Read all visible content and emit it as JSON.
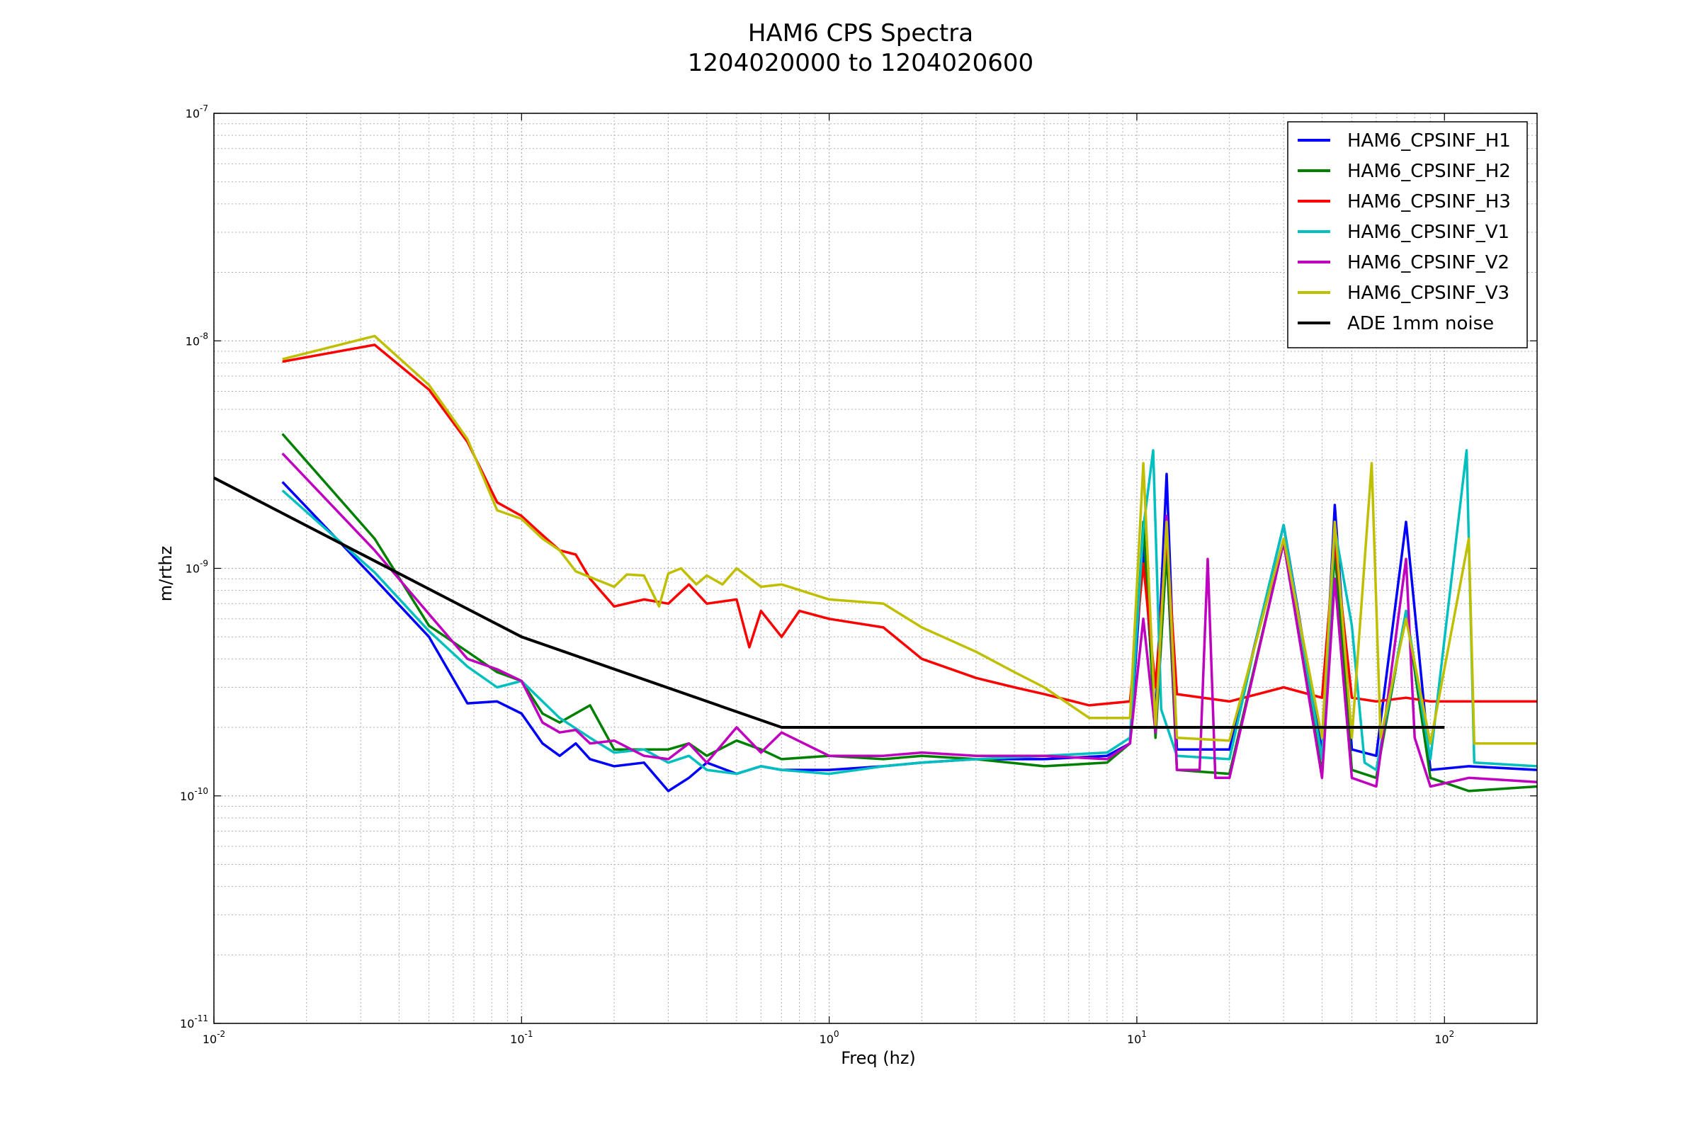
{
  "chart_data": {
    "type": "line",
    "title_line1": "HAM6 CPS Spectra",
    "title_line2": "1204020000 to 1204020600",
    "xlabel": "Freq (hz)",
    "ylabel": "m/rthz",
    "x_scale": "log",
    "y_scale": "log",
    "xlim": [
      0.01,
      200
    ],
    "ylim": [
      1e-11,
      1e-07
    ],
    "grid": true,
    "legend_position": "top-right",
    "x_ticks": [
      {
        "value": 0.01,
        "base": "10",
        "exp": "-2"
      },
      {
        "value": 0.1,
        "base": "10",
        "exp": "-1"
      },
      {
        "value": 1,
        "base": "10",
        "exp": "0"
      },
      {
        "value": 10,
        "base": "10",
        "exp": "1"
      },
      {
        "value": 100,
        "base": "10",
        "exp": "2"
      }
    ],
    "y_ticks": [
      {
        "value": 1e-11,
        "base": "10",
        "exp": "-11"
      },
      {
        "value": 1e-10,
        "base": "10",
        "exp": "-10"
      },
      {
        "value": 1e-09,
        "base": "10",
        "exp": "-9"
      },
      {
        "value": 1e-08,
        "base": "10",
        "exp": "-8"
      },
      {
        "value": 1e-07,
        "base": "10",
        "exp": "-7"
      }
    ],
    "series": [
      {
        "name": "HAM6_CPSINF_H1",
        "color": "#0000ff",
        "points": [
          [
            0.0167,
            2.4e-09
          ],
          [
            0.0333,
            9e-10
          ],
          [
            0.05,
            5e-10
          ],
          [
            0.0667,
            2.55e-10
          ],
          [
            0.0833,
            2.6e-10
          ],
          [
            0.1,
            2.3e-10
          ],
          [
            0.117,
            1.7e-10
          ],
          [
            0.133,
            1.5e-10
          ],
          [
            0.15,
            1.7e-10
          ],
          [
            0.167,
            1.45e-10
          ],
          [
            0.2,
            1.35e-10
          ],
          [
            0.25,
            1.4e-10
          ],
          [
            0.3,
            1.05e-10
          ],
          [
            0.35,
            1.2e-10
          ],
          [
            0.4,
            1.4e-10
          ],
          [
            0.5,
            1.25e-10
          ],
          [
            0.6,
            1.35e-10
          ],
          [
            0.7,
            1.3e-10
          ],
          [
            1.0,
            1.3e-10
          ],
          [
            1.5,
            1.35e-10
          ],
          [
            2.0,
            1.4e-10
          ],
          [
            3.0,
            1.45e-10
          ],
          [
            5.0,
            1.45e-10
          ],
          [
            8.0,
            1.5e-10
          ],
          [
            9.5,
            1.7e-10
          ],
          [
            10.5,
            1.25e-09
          ],
          [
            11.5,
            2.2e-10
          ],
          [
            12.5,
            2.6e-09
          ],
          [
            13.5,
            1.6e-10
          ],
          [
            20,
            1.6e-10
          ],
          [
            30,
            1.55e-09
          ],
          [
            40,
            1.55e-10
          ],
          [
            44,
            1.9e-09
          ],
          [
            50,
            1.6e-10
          ],
          [
            60,
            1.5e-10
          ],
          [
            75,
            1.6e-09
          ],
          [
            90,
            1.3e-10
          ],
          [
            120,
            1.35e-10
          ],
          [
            200,
            1.3e-10
          ]
        ]
      },
      {
        "name": "HAM6_CPSINF_H2",
        "color": "#008000",
        "points": [
          [
            0.0167,
            3.9e-09
          ],
          [
            0.0333,
            1.35e-09
          ],
          [
            0.05,
            5.6e-10
          ],
          [
            0.0667,
            4.3e-10
          ],
          [
            0.0833,
            3.5e-10
          ],
          [
            0.1,
            3.2e-10
          ],
          [
            0.117,
            2.3e-10
          ],
          [
            0.133,
            2.1e-10
          ],
          [
            0.167,
            2.5e-10
          ],
          [
            0.2,
            1.6e-10
          ],
          [
            0.25,
            1.6e-10
          ],
          [
            0.3,
            1.6e-10
          ],
          [
            0.35,
            1.7e-10
          ],
          [
            0.4,
            1.5e-10
          ],
          [
            0.5,
            1.75e-10
          ],
          [
            0.6,
            1.6e-10
          ],
          [
            0.7,
            1.45e-10
          ],
          [
            1.0,
            1.5e-10
          ],
          [
            1.5,
            1.45e-10
          ],
          [
            2.0,
            1.5e-10
          ],
          [
            3.0,
            1.45e-10
          ],
          [
            5.0,
            1.35e-10
          ],
          [
            8.0,
            1.4e-10
          ],
          [
            9.5,
            1.7e-10
          ],
          [
            10.5,
            1.6e-09
          ],
          [
            11.5,
            1.8e-10
          ],
          [
            12.5,
            1.2e-09
          ],
          [
            13.5,
            1.3e-10
          ],
          [
            20,
            1.25e-10
          ],
          [
            30,
            1.3e-09
          ],
          [
            40,
            1.25e-10
          ],
          [
            44,
            1.2e-09
          ],
          [
            50,
            1.3e-10
          ],
          [
            60,
            1.2e-10
          ],
          [
            75,
            6.5e-10
          ],
          [
            90,
            1.2e-10
          ],
          [
            120,
            1.05e-10
          ],
          [
            200,
            1.1e-10
          ]
        ]
      },
      {
        "name": "HAM6_CPSINF_H3",
        "color": "#ff0000",
        "points": [
          [
            0.0167,
            8.1e-09
          ],
          [
            0.0333,
            9.6e-09
          ],
          [
            0.05,
            6.1e-09
          ],
          [
            0.0667,
            3.6e-09
          ],
          [
            0.0833,
            1.95e-09
          ],
          [
            0.1,
            1.7e-09
          ],
          [
            0.117,
            1.4e-09
          ],
          [
            0.133,
            1.2e-09
          ],
          [
            0.15,
            1.15e-09
          ],
          [
            0.167,
            9e-10
          ],
          [
            0.2,
            6.8e-10
          ],
          [
            0.25,
            7.3e-10
          ],
          [
            0.3,
            7e-10
          ],
          [
            0.35,
            8.5e-10
          ],
          [
            0.4,
            7e-10
          ],
          [
            0.5,
            7.3e-10
          ],
          [
            0.55,
            4.5e-10
          ],
          [
            0.6,
            6.5e-10
          ],
          [
            0.7,
            5e-10
          ],
          [
            0.8,
            6.5e-10
          ],
          [
            1.0,
            6e-10
          ],
          [
            1.5,
            5.5e-10
          ],
          [
            2.0,
            4e-10
          ],
          [
            3.0,
            3.3e-10
          ],
          [
            4.0,
            3e-10
          ],
          [
            5.0,
            2.8e-10
          ],
          [
            7.0,
            2.5e-10
          ],
          [
            9.5,
            2.6e-10
          ],
          [
            10.5,
            1.05e-09
          ],
          [
            11.5,
            3e-10
          ],
          [
            12.5,
            1.4e-09
          ],
          [
            13.5,
            2.8e-10
          ],
          [
            20,
            2.6e-10
          ],
          [
            30,
            3e-10
          ],
          [
            40,
            2.7e-10
          ],
          [
            44,
            1.3e-09
          ],
          [
            50,
            2.7e-10
          ],
          [
            60,
            2.6e-10
          ],
          [
            75,
            2.7e-10
          ],
          [
            90,
            2.6e-10
          ],
          [
            120,
            2.6e-10
          ],
          [
            200,
            2.6e-10
          ]
        ]
      },
      {
        "name": "HAM6_CPSINF_V1",
        "color": "#00bfbf",
        "points": [
          [
            0.0167,
            2.2e-09
          ],
          [
            0.0333,
            9.6e-10
          ],
          [
            0.05,
            5.3e-10
          ],
          [
            0.0667,
            3.7e-10
          ],
          [
            0.0833,
            3e-10
          ],
          [
            0.1,
            3.2e-10
          ],
          [
            0.117,
            2.6e-10
          ],
          [
            0.133,
            2.2e-10
          ],
          [
            0.167,
            1.8e-10
          ],
          [
            0.2,
            1.55e-10
          ],
          [
            0.25,
            1.6e-10
          ],
          [
            0.3,
            1.4e-10
          ],
          [
            0.35,
            1.5e-10
          ],
          [
            0.4,
            1.3e-10
          ],
          [
            0.5,
            1.25e-10
          ],
          [
            0.6,
            1.35e-10
          ],
          [
            0.7,
            1.3e-10
          ],
          [
            1.0,
            1.25e-10
          ],
          [
            1.5,
            1.35e-10
          ],
          [
            2.0,
            1.4e-10
          ],
          [
            3.0,
            1.45e-10
          ],
          [
            5.0,
            1.5e-10
          ],
          [
            8.0,
            1.55e-10
          ],
          [
            9.5,
            1.8e-10
          ],
          [
            10.5,
            1.5e-09
          ],
          [
            11.3,
            3.3e-09
          ],
          [
            12.0,
            2.4e-10
          ],
          [
            13.5,
            1.5e-10
          ],
          [
            20,
            1.45e-10
          ],
          [
            25,
            5.6e-10
          ],
          [
            30,
            1.55e-09
          ],
          [
            40,
            1.45e-10
          ],
          [
            44,
            1.5e-09
          ],
          [
            50,
            5.6e-10
          ],
          [
            55,
            1.4e-10
          ],
          [
            60,
            1.3e-10
          ],
          [
            75,
            6.5e-10
          ],
          [
            90,
            1.45e-10
          ],
          [
            118,
            3.3e-09
          ],
          [
            125,
            1.4e-10
          ],
          [
            200,
            1.35e-10
          ]
        ]
      },
      {
        "name": "HAM6_CPSINF_V2",
        "color": "#bf00bf",
        "points": [
          [
            0.0167,
            3.2e-09
          ],
          [
            0.0333,
            1.2e-09
          ],
          [
            0.05,
            6.3e-10
          ],
          [
            0.0667,
            4e-10
          ],
          [
            0.0833,
            3.6e-10
          ],
          [
            0.1,
            3.2e-10
          ],
          [
            0.117,
            2.1e-10
          ],
          [
            0.133,
            1.9e-10
          ],
          [
            0.15,
            1.95e-10
          ],
          [
            0.167,
            1.7e-10
          ],
          [
            0.2,
            1.75e-10
          ],
          [
            0.25,
            1.5e-10
          ],
          [
            0.3,
            1.45e-10
          ],
          [
            0.35,
            1.7e-10
          ],
          [
            0.4,
            1.4e-10
          ],
          [
            0.5,
            2e-10
          ],
          [
            0.6,
            1.55e-10
          ],
          [
            0.7,
            1.9e-10
          ],
          [
            1.0,
            1.5e-10
          ],
          [
            1.5,
            1.5e-10
          ],
          [
            2.0,
            1.55e-10
          ],
          [
            3.0,
            1.5e-10
          ],
          [
            5.0,
            1.5e-10
          ],
          [
            8.0,
            1.45e-10
          ],
          [
            9.5,
            1.7e-10
          ],
          [
            10.5,
            6e-10
          ],
          [
            11.5,
            1.9e-10
          ],
          [
            12.5,
            1.7e-09
          ],
          [
            13.5,
            1.3e-10
          ],
          [
            16,
            1.3e-10
          ],
          [
            17,
            1.1e-09
          ],
          [
            18,
            1.2e-10
          ],
          [
            20,
            1.2e-10
          ],
          [
            30,
            1.3e-09
          ],
          [
            40,
            1.2e-10
          ],
          [
            44,
            9e-10
          ],
          [
            50,
            1.2e-10
          ],
          [
            60,
            1.1e-10
          ],
          [
            75,
            1.1e-09
          ],
          [
            80,
            1.8e-10
          ],
          [
            90,
            1.1e-10
          ],
          [
            120,
            1.2e-10
          ],
          [
            200,
            1.15e-10
          ]
        ]
      },
      {
        "name": "HAM6_CPSINF_V3",
        "color": "#bfbf00",
        "points": [
          [
            0.0167,
            8.3e-09
          ],
          [
            0.0333,
            1.05e-08
          ],
          [
            0.05,
            6.4e-09
          ],
          [
            0.0667,
            3.7e-09
          ],
          [
            0.0833,
            1.8e-09
          ],
          [
            0.1,
            1.65e-09
          ],
          [
            0.117,
            1.35e-09
          ],
          [
            0.133,
            1.2e-09
          ],
          [
            0.15,
            9.7e-10
          ],
          [
            0.2,
            8.3e-10
          ],
          [
            0.22,
            9.4e-10
          ],
          [
            0.25,
            9.3e-10
          ],
          [
            0.28,
            6.8e-10
          ],
          [
            0.3,
            9.5e-10
          ],
          [
            0.33,
            1e-09
          ],
          [
            0.37,
            8.5e-10
          ],
          [
            0.4,
            9.3e-10
          ],
          [
            0.45,
            8.5e-10
          ],
          [
            0.5,
            1e-09
          ],
          [
            0.6,
            8.3e-10
          ],
          [
            0.7,
            8.5e-10
          ],
          [
            1.0,
            7.3e-10
          ],
          [
            1.5,
            7e-10
          ],
          [
            2.0,
            5.5e-10
          ],
          [
            3.0,
            4.3e-10
          ],
          [
            4.0,
            3.5e-10
          ],
          [
            5.0,
            3e-10
          ],
          [
            7.0,
            2.2e-10
          ],
          [
            9.5,
            2.2e-10
          ],
          [
            10.5,
            2.9e-09
          ],
          [
            11.5,
            2e-10
          ],
          [
            12.5,
            1.6e-09
          ],
          [
            13.5,
            1.8e-10
          ],
          [
            20,
            1.75e-10
          ],
          [
            30,
            1.35e-09
          ],
          [
            40,
            1.8e-10
          ],
          [
            44,
            1.6e-09
          ],
          [
            50,
            1.8e-10
          ],
          [
            58,
            2.9e-09
          ],
          [
            62,
            1.8e-10
          ],
          [
            75,
            6e-10
          ],
          [
            90,
            1.7e-10
          ],
          [
            120,
            1.35e-09
          ],
          [
            125,
            1.7e-10
          ],
          [
            200,
            1.7e-10
          ]
        ]
      },
      {
        "name": "ADE 1mm noise",
        "color": "#000000",
        "points": [
          [
            0.01,
            2.5e-09
          ],
          [
            0.1,
            5e-10
          ],
          [
            0.7,
            2e-10
          ],
          [
            100,
            2e-10
          ]
        ]
      }
    ]
  }
}
